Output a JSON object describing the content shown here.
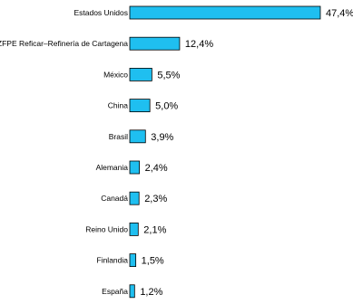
{
  "chart_data": {
    "type": "bar",
    "orientation": "horizontal",
    "categories": [
      "Estados Unidos",
      "ZFPE  Reficar–Refinería de Cartagena",
      "México",
      "China",
      "Brasil",
      "Alemania",
      "Canadá",
      "Reino Unido",
      "Finlandia",
      "España"
    ],
    "values": [
      47.4,
      12.4,
      5.5,
      5.0,
      3.9,
      2.4,
      2.3,
      2.1,
      1.5,
      1.2
    ],
    "value_labels": [
      "47,4%",
      "12,4%",
      "5,5%",
      "5,0%",
      "3,9%",
      "2,4%",
      "2,3%",
      "2,1%",
      "1,5%",
      "1,2%"
    ],
    "xlim": [
      0,
      47.4
    ],
    "grid": false,
    "bar_color": "#1fbff0",
    "bar_outline": "#000000"
  }
}
